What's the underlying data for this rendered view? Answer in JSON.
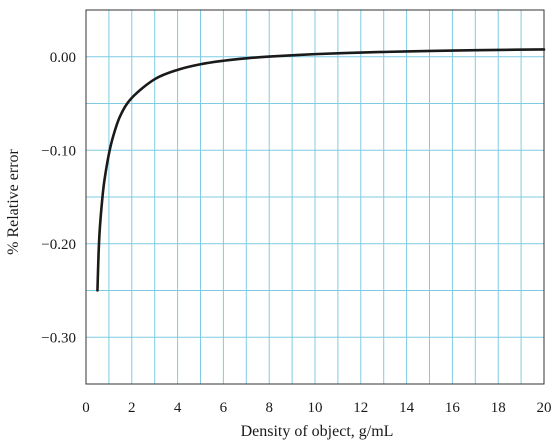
{
  "chart_data": {
    "type": "line",
    "title": "",
    "xlabel": "Density of object, g/mL",
    "ylabel": "% Relative error",
    "xlim": [
      0,
      20
    ],
    "ylim": [
      -0.35,
      0.05
    ],
    "x_ticks": [
      0,
      2,
      4,
      6,
      8,
      10,
      12,
      14,
      16,
      18,
      20
    ],
    "x_tick_labels": [
      "0",
      "2",
      "4",
      "6",
      "8",
      "10",
      "12",
      "14",
      "16",
      "18",
      "20"
    ],
    "y_ticks": [
      0.0,
      -0.1,
      -0.2,
      -0.3
    ],
    "y_tick_labels": [
      "0.00",
      "−0.10",
      "−0.20",
      "−0.30"
    ],
    "grid": true,
    "series": [
      {
        "x": [
          0.5,
          0.55,
          0.6,
          0.7,
          0.8,
          1.0,
          1.2,
          1.5,
          2,
          3,
          4,
          5,
          6,
          7,
          8,
          10,
          12,
          14,
          16,
          18,
          20
        ],
        "y": [
          -0.25,
          -0.21,
          -0.185,
          -0.155,
          -0.133,
          -0.104,
          -0.084,
          -0.063,
          -0.044,
          -0.024,
          -0.014,
          -0.008,
          -0.0043,
          -0.0017,
          0.0002,
          0.0028,
          0.0045,
          0.0057,
          0.0066,
          0.0073,
          0.0078
        ]
      }
    ]
  },
  "colors": {
    "grid": "#7ecbe3",
    "curve": "#1a1a1a",
    "frame": "#333333",
    "text": "#1a1a1a"
  }
}
